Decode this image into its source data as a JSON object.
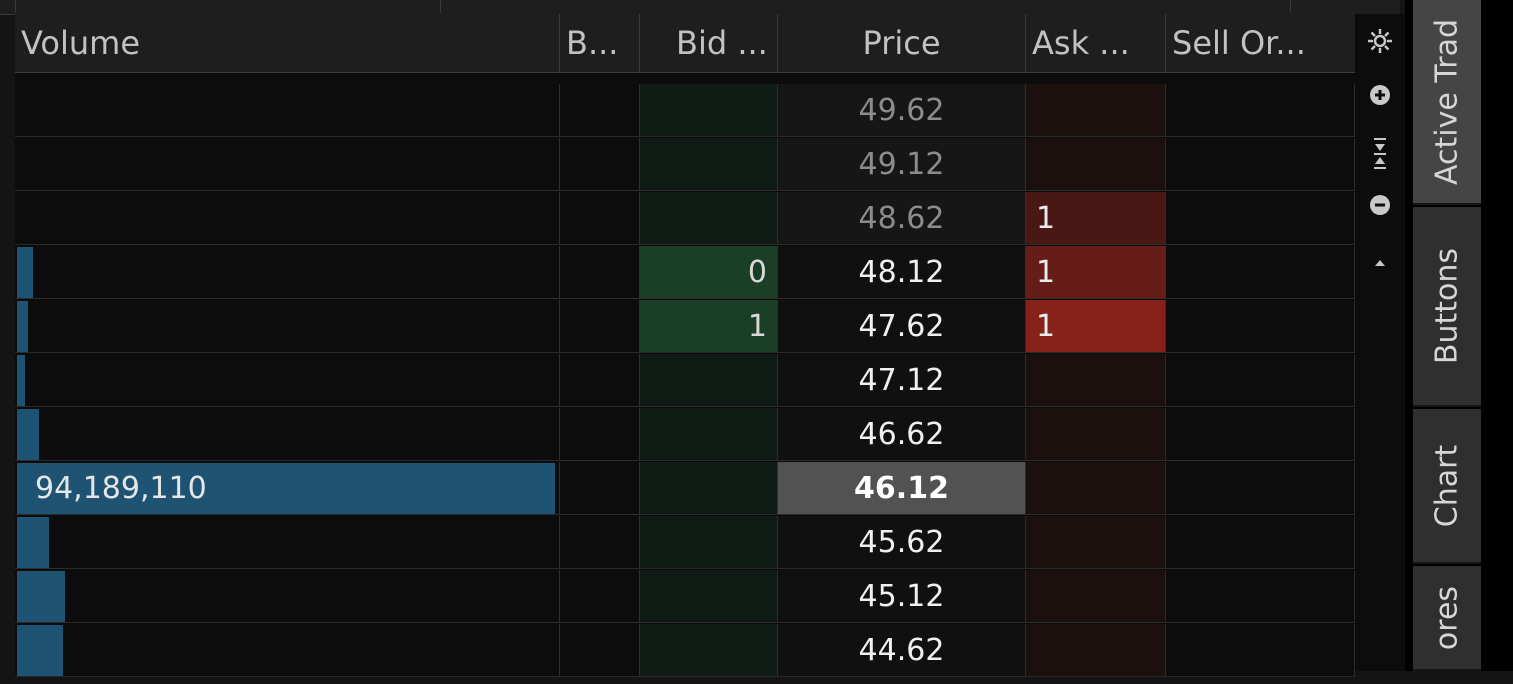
{
  "headers": {
    "volume": "Volume",
    "buy_orders": "B...",
    "bid_size": "Bid ...",
    "price": "Price",
    "ask_size": "Ask ...",
    "sell_orders": "Sell Or..."
  },
  "rows": [
    {
      "price": "49.62",
      "bid": "",
      "ask": "",
      "volume_label": "",
      "volume_fraction": 0
    },
    {
      "price": "49.12",
      "bid": "",
      "ask": "",
      "volume_label": "",
      "volume_fraction": 0
    },
    {
      "price": "48.62",
      "bid": "",
      "ask": "1",
      "volume_label": "",
      "volume_fraction": 0
    },
    {
      "price": "48.12",
      "bid": "0",
      "ask": "1",
      "volume_label": "",
      "volume_fraction": 0.03
    },
    {
      "price": "47.62",
      "bid": "1",
      "ask": "1",
      "volume_label": "",
      "volume_fraction": 0.02
    },
    {
      "price": "47.12",
      "bid": "",
      "ask": "",
      "volume_label": "",
      "volume_fraction": 0.015
    },
    {
      "price": "46.62",
      "bid": "",
      "ask": "",
      "volume_label": "",
      "volume_fraction": 0.04
    },
    {
      "price": "46.12",
      "bid": "",
      "ask": "",
      "volume_label": "94,189,110",
      "volume_fraction": 1.0
    },
    {
      "price": "45.62",
      "bid": "",
      "ask": "",
      "volume_label": "",
      "volume_fraction": 0.06
    },
    {
      "price": "45.12",
      "bid": "",
      "ask": "",
      "volume_label": "",
      "volume_fraction": 0.09
    },
    {
      "price": "44.62",
      "bid": "",
      "ask": "",
      "volume_label": "",
      "volume_fraction": 0.085
    }
  ],
  "last_price": "46.12",
  "tools": [
    "settings-icon",
    "zoom-in-icon",
    "center-icon",
    "zoom-out-icon",
    "scroll-up-icon"
  ],
  "side_tabs": [
    "Active Trad",
    "Buttons",
    "Chart",
    "ores"
  ],
  "colors": {
    "volume_bar": "#1f5373",
    "bid_fill": "#1b3e26",
    "ask_fill": "#862219",
    "current_price_bg": "#525252"
  }
}
